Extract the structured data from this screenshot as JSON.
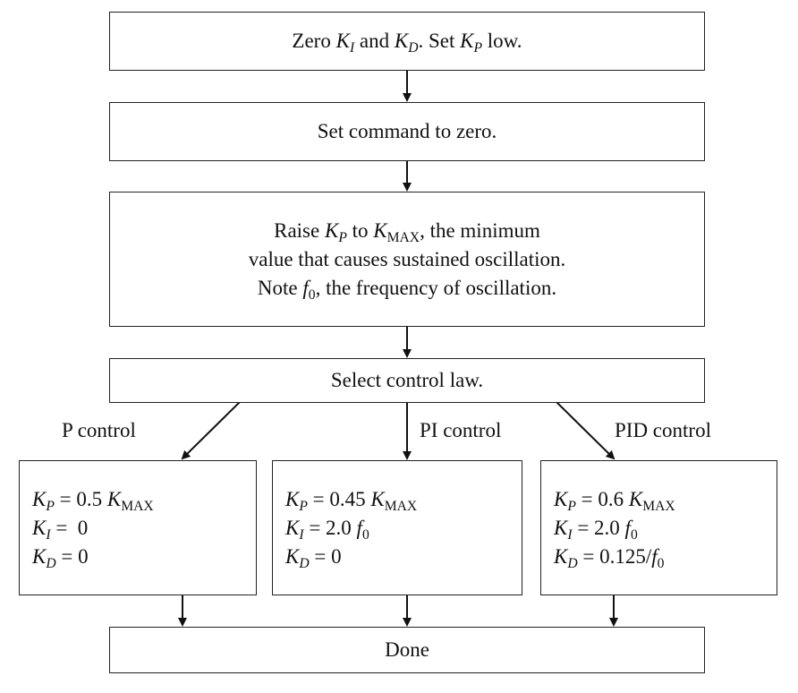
{
  "step1": {
    "pre": "Zero ",
    "k1": "K",
    "k1s": "I",
    "and": " and ",
    "k2": "K",
    "k2s": "D",
    "mid": ".  Set ",
    "k3": "K",
    "k3s": "P",
    "post": " low."
  },
  "step2": {
    "text": "Set command to zero."
  },
  "step3": {
    "l1a": "Raise ",
    "l1k": "K",
    "l1ks": "P",
    "l1b": " to ",
    "l1m": "K",
    "l1ms": "MAX",
    "l1c": ", the minimum",
    "l2": "value that causes sustained oscillation.",
    "l3a": "Note ",
    "l3f": "f",
    "l3fs": "0",
    "l3b": ", the frequency of oscillation."
  },
  "step4": {
    "text": "Select control law."
  },
  "branches": {
    "p": {
      "label": "P control",
      "kp_k": "K",
      "kp_s": "P",
      "kp_eq": " = 0.5 ",
      "kp_m": "K",
      "kp_ms": "MAX",
      "ki_k": "K",
      "ki_s": "I",
      "ki_eq": " =  0",
      "kd_k": "K",
      "kd_s": "D",
      "kd_eq": " = 0"
    },
    "pi": {
      "label": "PI control",
      "kp_k": "K",
      "kp_s": "P",
      "kp_eq": " = 0.45 ",
      "kp_m": "K",
      "kp_ms": "MAX",
      "ki_k": "K",
      "ki_s": "I",
      "ki_eq": " = 2.0 ",
      "ki_f": "f",
      "ki_fs": "0",
      "kd_k": "K",
      "kd_s": "D",
      "kd_eq": " = 0"
    },
    "pid": {
      "label": "PID control",
      "kp_k": "K",
      "kp_s": "P",
      "kp_eq": " = 0.6 ",
      "kp_m": "K",
      "kp_ms": "MAX",
      "ki_k": "K",
      "ki_s": "I",
      "ki_eq": " = 2.0 ",
      "ki_f": "f",
      "ki_fs": "0",
      "kd_k": "K",
      "kd_s": "D",
      "kd_eq": " = 0.125/",
      "kd_f": "f",
      "kd_fs": "0"
    }
  },
  "done": {
    "text": "Done"
  }
}
